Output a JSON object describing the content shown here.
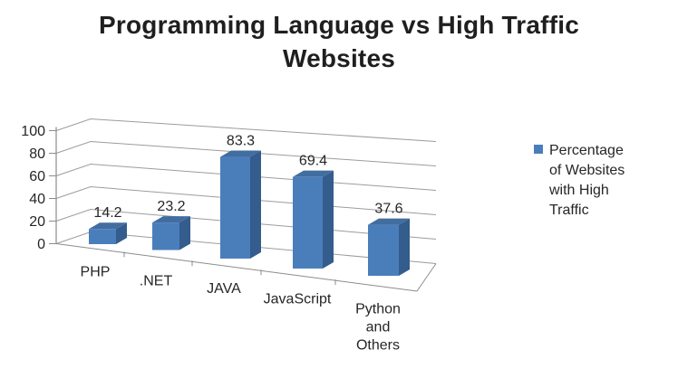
{
  "title": {
    "text": "Programming Language vs High Traffic Websites",
    "lines": [
      "Programming Language vs High Traffic",
      "Websites"
    ]
  },
  "legend": {
    "label": "Percentage of Websites with High Traffic",
    "lines": [
      "Percentage",
      "of Websites",
      "with High",
      "Traffic"
    ]
  },
  "chart_data": {
    "type": "bar",
    "subtype": "3d-clustered-column",
    "title": "Programming Language vs High Traffic Websites",
    "categories": [
      "PHP",
      ".NET",
      "JAVA",
      "JavaScript",
      "Python and Others"
    ],
    "category_display_lines": [
      [
        "PHP"
      ],
      [
        ".NET"
      ],
      [
        "JAVA"
      ],
      [
        "JavaScript"
      ],
      [
        "Python",
        "and",
        "Others"
      ]
    ],
    "series": [
      {
        "name": "Percentage of Websites with High Traffic",
        "values": [
          14.2,
          23.2,
          83.3,
          69.4,
          37.6
        ],
        "data_labels": [
          "14.2",
          "23.2",
          "83.3",
          "69.4",
          "37.6"
        ]
      }
    ],
    "xlabel": "",
    "ylabel": "",
    "ylim": [
      0,
      100
    ],
    "yticks": [
      0,
      20,
      40,
      60,
      80,
      100
    ],
    "grid": true,
    "legend_position": "right",
    "colors": {
      "bar_front": "#4A7EBB",
      "bar_top": "#426DA1",
      "bar_side": "#345C8C",
      "gridline": "#9C9C9C",
      "axis": "#8C8C8C",
      "label_text": "#262626",
      "title_text": "#1F1F1F",
      "background": "#FFFFFF"
    }
  }
}
